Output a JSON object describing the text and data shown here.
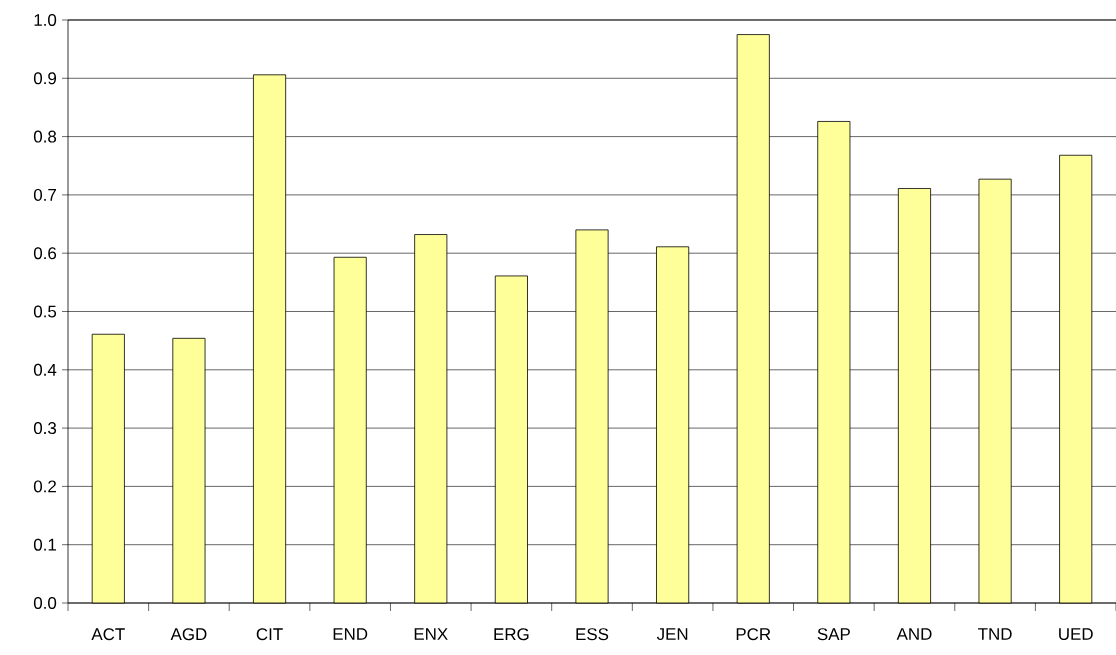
{
  "chart_data": {
    "type": "bar",
    "categories": [
      "ACT",
      "AGD",
      "CIT",
      "END",
      "ENX",
      "ERG",
      "ESS",
      "JEN",
      "PCR",
      "SAP",
      "AND",
      "TND",
      "UED"
    ],
    "values": [
      0.461,
      0.454,
      0.906,
      0.593,
      0.632,
      0.561,
      0.64,
      0.611,
      0.975,
      0.826,
      0.711,
      0.727,
      0.768
    ],
    "color": "#ffff99",
    "ylim": [
      0,
      1
    ],
    "yticks": [
      {
        "value": 0,
        "label": "0.0"
      },
      {
        "value": 0.1,
        "label": "0.1"
      },
      {
        "value": 0.2,
        "label": "0.2"
      },
      {
        "value": 0.3,
        "label": "0.3"
      },
      {
        "value": 0.4,
        "label": "0.4"
      },
      {
        "value": 0.5,
        "label": "0.5"
      },
      {
        "value": 0.6,
        "label": "0.6"
      },
      {
        "value": 0.7,
        "label": "0.7"
      },
      {
        "value": 0.8,
        "label": "0.8"
      },
      {
        "value": 0.9,
        "label": "0.9"
      },
      {
        "value": 1,
        "label": "1.0"
      }
    ],
    "grid": "y"
  }
}
